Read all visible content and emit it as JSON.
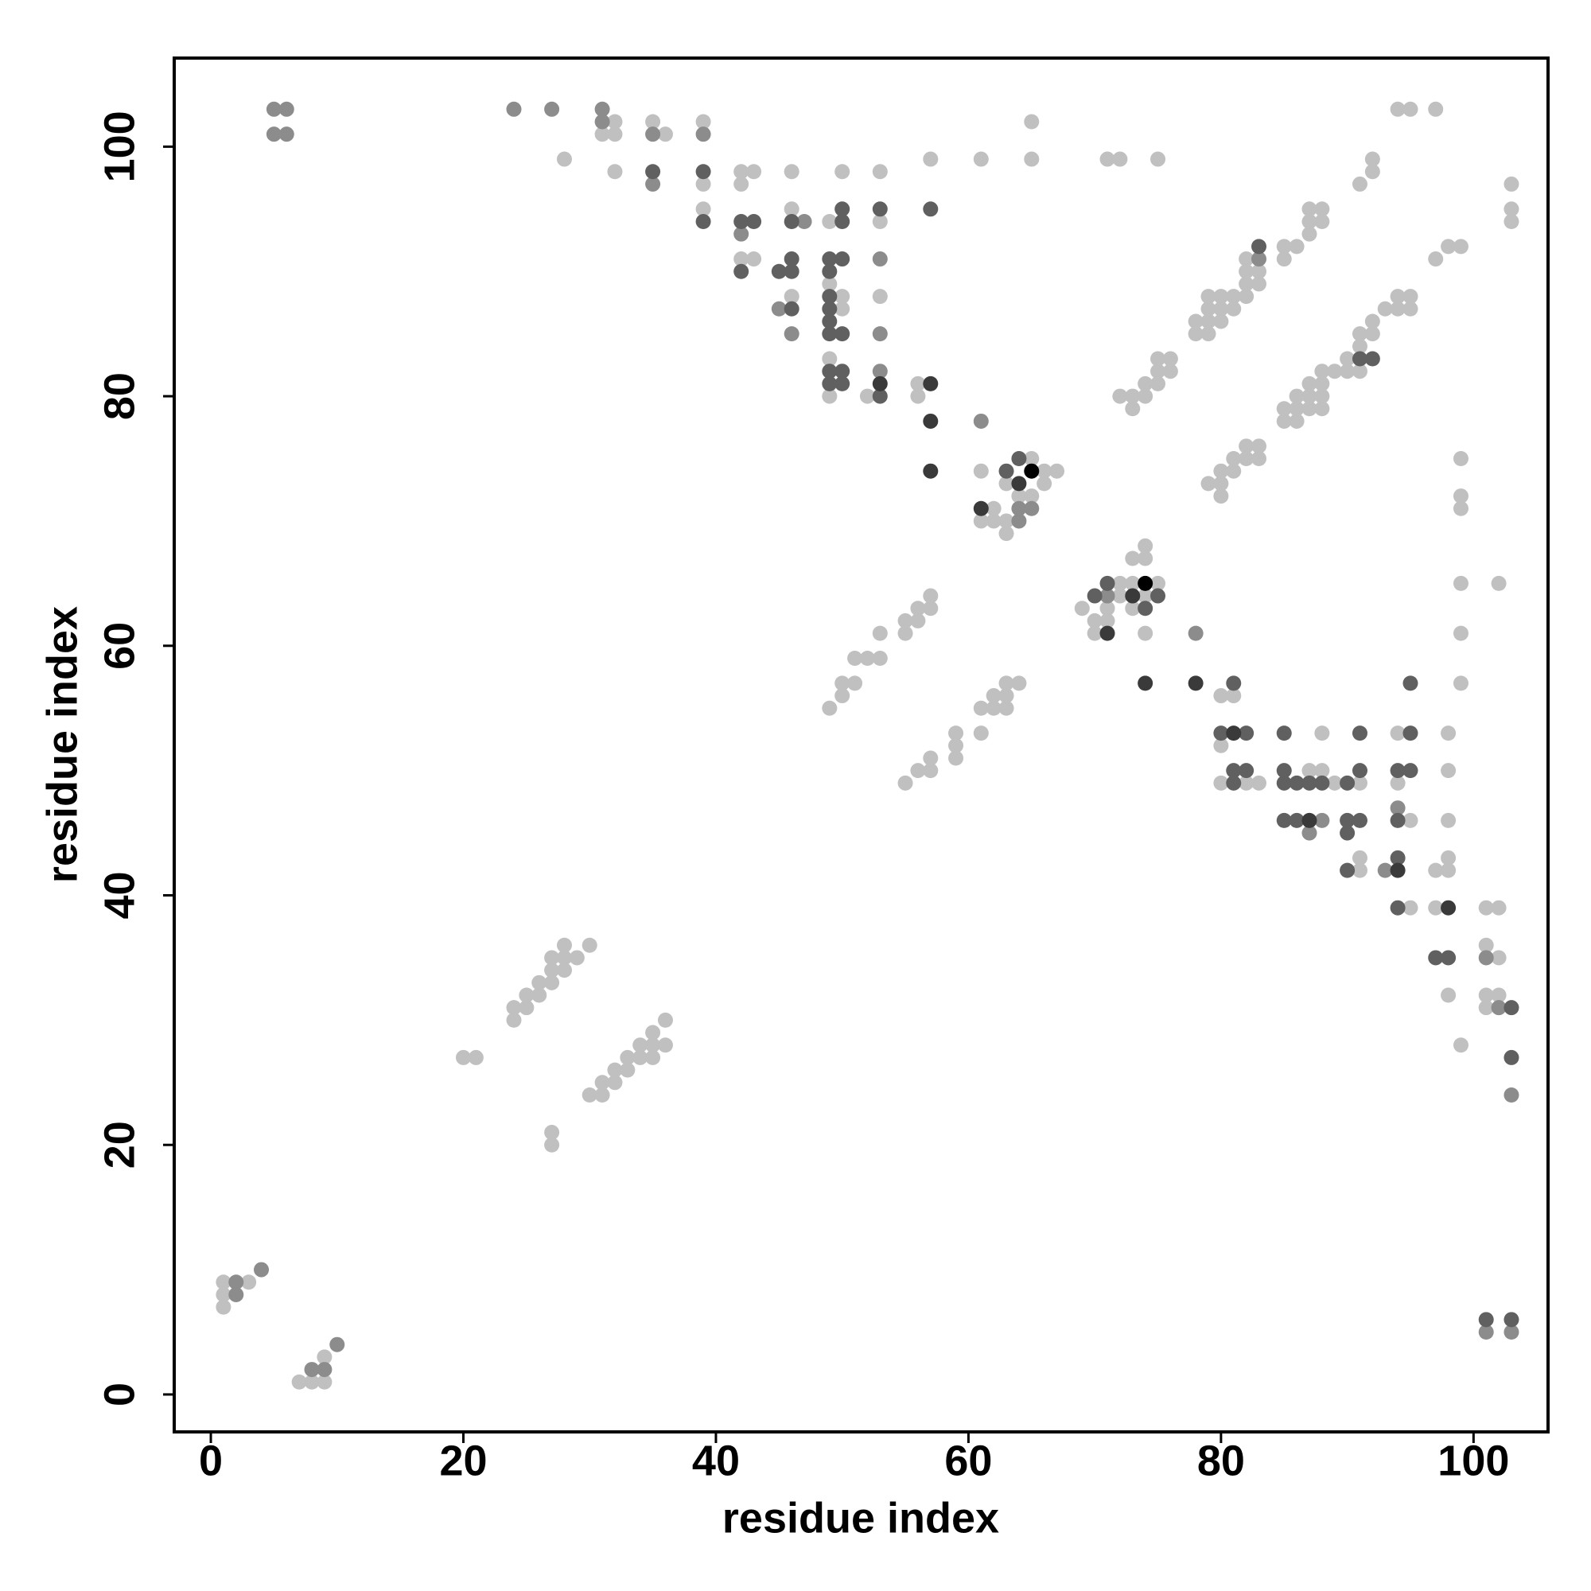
{
  "chart_data": {
    "type": "scatter",
    "xlabel": "residue index",
    "ylabel": "residue index",
    "xlim": [
      -2.9,
      105.9
    ],
    "ylim": [
      -3,
      107.1
    ],
    "xticks": [
      0,
      20,
      40,
      60,
      80,
      100
    ],
    "yticks": [
      0,
      20,
      40,
      60,
      80,
      100
    ],
    "grid": false,
    "series": [
      {
        "color": "#c0c0c0",
        "x": [
          1,
          1,
          1,
          3,
          7,
          8,
          9,
          9,
          20,
          21,
          27,
          27,
          24,
          24,
          25,
          25,
          26,
          26,
          27,
          27,
          27,
          28,
          28,
          28,
          29,
          30,
          30,
          31,
          31,
          32,
          32,
          33,
          33,
          34,
          34,
          35,
          35,
          35,
          36,
          36,
          28,
          31,
          32,
          32,
          32,
          35,
          36,
          39,
          39,
          39,
          42,
          42,
          43,
          46,
          50,
          53,
          57,
          61,
          65,
          65,
          71,
          72,
          75,
          46,
          49,
          53,
          42,
          43,
          46,
          49,
          50,
          50,
          53,
          49,
          49,
          52,
          56,
          56,
          61,
          61,
          62,
          62,
          63,
          63,
          63,
          64,
          65,
          65,
          66,
          66,
          67,
          69,
          70,
          70,
          71,
          71,
          72,
          72,
          73,
          73,
          73,
          74,
          74,
          74,
          74,
          75,
          80,
          81,
          55,
          56,
          57,
          57,
          59,
          59,
          59,
          61,
          61,
          62,
          62,
          63,
          63,
          63,
          64,
          49,
          50,
          50,
          51,
          51,
          52,
          53,
          53,
          55,
          55,
          56,
          56,
          57,
          57,
          72,
          73,
          73,
          74,
          74,
          75,
          75,
          75,
          76,
          76,
          78,
          78,
          79,
          79,
          79,
          79,
          80,
          80,
          80,
          81,
          81,
          82,
          82,
          82,
          82,
          83,
          83,
          85,
          85,
          86,
          87,
          87,
          87,
          88,
          88,
          79,
          80,
          80,
          80,
          81,
          81,
          82,
          82,
          83,
          83,
          85,
          85,
          86,
          86,
          86,
          87,
          87,
          87,
          88,
          88,
          88,
          88,
          89,
          90,
          90,
          91,
          91,
          91,
          92,
          92,
          93,
          94,
          94,
          95,
          95,
          97,
          98,
          99,
          91,
          92,
          92,
          94,
          95,
          97,
          103,
          103,
          103,
          99,
          99,
          99,
          102,
          99,
          99,
          99,
          80,
          80,
          82,
          83,
          87,
          88,
          88,
          89,
          91,
          91,
          91,
          94,
          94,
          95,
          95,
          97,
          97,
          98,
          98,
          98,
          98,
          98,
          98,
          99,
          101,
          102,
          101,
          102,
          101,
          102,
          101
        ],
        "values": [
          7,
          8,
          9,
          9,
          1,
          1,
          1,
          3,
          27,
          27,
          20,
          21,
          30,
          31,
          31,
          32,
          32,
          33,
          33,
          34,
          35,
          34,
          35,
          36,
          35,
          36,
          24,
          24,
          25,
          25,
          26,
          26,
          27,
          27,
          28,
          27,
          28,
          29,
          28,
          30,
          99,
          101,
          101,
          102,
          98,
          102,
          101,
          102,
          97,
          95,
          98,
          97,
          98,
          98,
          98,
          98,
          99,
          99,
          102,
          99,
          99,
          99,
          99,
          95,
          94,
          94,
          91,
          91,
          88,
          89,
          88,
          87,
          88,
          83,
          80,
          80,
          81,
          80,
          74,
          70,
          70,
          71,
          69,
          70,
          73,
          72,
          75,
          72,
          74,
          73,
          74,
          63,
          62,
          61,
          63,
          62,
          65,
          64,
          67,
          65,
          63,
          68,
          67,
          64,
          61,
          65,
          56,
          56,
          49,
          50,
          50,
          51,
          51,
          52,
          53,
          53,
          55,
          55,
          56,
          55,
          56,
          57,
          57,
          55,
          56,
          57,
          57,
          59,
          59,
          59,
          61,
          61,
          62,
          62,
          63,
          63,
          64,
          80,
          79,
          80,
          80,
          81,
          81,
          82,
          83,
          82,
          83,
          85,
          86,
          85,
          86,
          87,
          88,
          86,
          87,
          88,
          87,
          88,
          88,
          89,
          90,
          91,
          89,
          90,
          91,
          92,
          92,
          93,
          94,
          95,
          94,
          95,
          73,
          72,
          73,
          74,
          74,
          75,
          75,
          76,
          75,
          76,
          78,
          79,
          78,
          79,
          80,
          79,
          80,
          81,
          79,
          80,
          81,
          82,
          82,
          82,
          83,
          82,
          84,
          85,
          85,
          86,
          87,
          87,
          88,
          87,
          88,
          91,
          92,
          92,
          97,
          98,
          99,
          103,
          103,
          103,
          97,
          95,
          94,
          75,
          72,
          71,
          65,
          65,
          61,
          57,
          52,
          49,
          49,
          49,
          50,
          53,
          50,
          49,
          49,
          43,
          42,
          53,
          49,
          46,
          39,
          42,
          39,
          53,
          50,
          46,
          43,
          42,
          32,
          28,
          39,
          39,
          36,
          35,
          32,
          32,
          31
        ]
      },
      {
        "color": "#8c8c8c",
        "x": [
          2,
          2,
          4,
          10,
          8,
          9,
          5,
          6,
          5,
          6,
          24,
          27,
          31,
          31,
          35,
          39,
          35,
          42,
          47,
          45,
          46,
          53,
          53,
          53,
          61,
          64,
          64,
          65,
          71,
          78,
          83,
          87,
          88,
          93,
          94,
          101,
          102,
          103,
          101,
          103
        ],
        "values": [
          8,
          9,
          10,
          4,
          2,
          2,
          103,
          103,
          101,
          101,
          103,
          103,
          103,
          102,
          101,
          101,
          97,
          93,
          94,
          87,
          85,
          91,
          85,
          82,
          78,
          71,
          70,
          71,
          64,
          61,
          91,
          45,
          46,
          42,
          47,
          35,
          31,
          24,
          5,
          5
        ]
      },
      {
        "color": "#606060",
        "x": [
          35,
          39,
          39,
          42,
          43,
          46,
          50,
          50,
          53,
          57,
          42,
          45,
          46,
          46,
          46,
          49,
          49,
          49,
          49,
          49,
          49,
          50,
          50,
          49,
          49,
          50,
          50,
          53,
          63,
          64,
          70,
          71,
          74,
          75,
          81,
          83,
          91,
          92,
          80,
          81,
          81,
          82,
          82,
          85,
          85,
          85,
          85,
          86,
          86,
          87,
          88,
          90,
          90,
          90,
          90,
          91,
          91,
          91,
          94,
          94,
          94,
          94,
          95,
          95,
          95,
          97,
          98,
          103,
          103,
          101,
          103
        ],
        "values": [
          98,
          98,
          94,
          94,
          94,
          94,
          94,
          95,
          95,
          95,
          90,
          90,
          90,
          91,
          87,
          91,
          90,
          88,
          87,
          86,
          85,
          91,
          85,
          82,
          81,
          82,
          81,
          80,
          74,
          75,
          64,
          65,
          63,
          64,
          57,
          92,
          83,
          83,
          53,
          50,
          49,
          53,
          50,
          53,
          50,
          49,
          46,
          49,
          46,
          49,
          49,
          49,
          46,
          45,
          42,
          53,
          50,
          46,
          50,
          46,
          43,
          39,
          57,
          53,
          50,
          35,
          35,
          31,
          27,
          6,
          6
        ]
      },
      {
        "color": "#3a3a3a",
        "x": [
          53,
          57,
          57,
          57,
          61,
          64,
          71,
          73,
          74,
          78,
          81,
          87,
          94,
          98
        ],
        "values": [
          81,
          81,
          78,
          74,
          71,
          73,
          61,
          64,
          57,
          57,
          53,
          46,
          42,
          39
        ]
      },
      {
        "color": "#000000",
        "x": [
          65,
          74
        ],
        "values": [
          74,
          65
        ]
      }
    ]
  }
}
